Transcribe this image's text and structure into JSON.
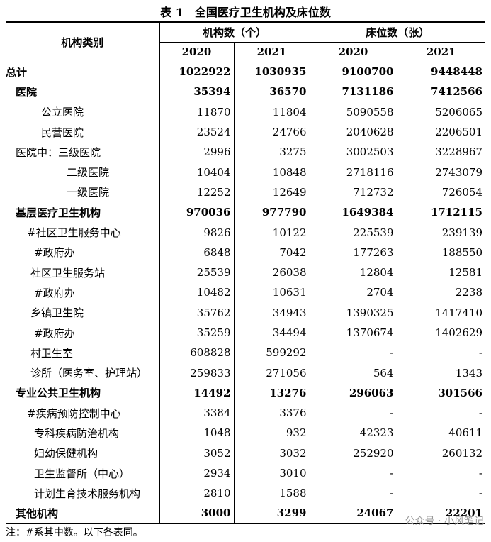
{
  "title": "表 1　全国医疗卫生机构及床位数",
  "table": {
    "header": {
      "category": "机构类别",
      "group1": "机构数（个）",
      "group2": "床位数（张）",
      "years": [
        "2020",
        "2021",
        "2020",
        "2021"
      ]
    },
    "rows": [
      [
        "总计",
        1022922,
        1030935,
        9100700,
        9448448
      ],
      [
        "医院",
        35394,
        36570,
        7131186,
        7412566
      ],
      [
        "公立医院",
        11870,
        11804,
        5090558,
        5206065
      ],
      [
        "民营医院",
        23524,
        24766,
        2040628,
        2206501
      ],
      [
        "医院中：三级医院",
        2996,
        3275,
        3002503,
        3228967
      ],
      [
        "二级医院",
        10404,
        10848,
        2718116,
        2743079
      ],
      [
        "一级医院",
        12252,
        12649,
        712732,
        726054
      ],
      [
        "基层医疗卫生机构",
        970036,
        977790,
        1649384,
        1712115
      ],
      [
        "#社区卫生服务中心",
        9826,
        10122,
        225539,
        239139
      ],
      [
        "#政府办",
        6848,
        7042,
        177263,
        188550
      ],
      [
        "社区卫生服务站",
        25539,
        26038,
        12804,
        12581
      ],
      [
        "#政府办",
        10482,
        10631,
        2704,
        2238
      ],
      [
        "乡镇卫生院",
        35762,
        34943,
        1390325,
        1417410
      ],
      [
        "#政府办",
        35259,
        34494,
        1370674,
        1402629
      ],
      [
        "村卫生室",
        608828,
        599292,
        "-",
        "-"
      ],
      [
        "诊所（医务室、护理站）",
        259833,
        271056,
        564,
        1343
      ],
      [
        "专业公共卫生机构",
        14492,
        13276,
        296063,
        301566
      ],
      [
        "#疾病预防控制中心",
        3384,
        3376,
        "-",
        "-"
      ],
      [
        "专科疾病防治机构",
        1048,
        932,
        42323,
        40611
      ],
      [
        "妇幼保健机构",
        3052,
        3032,
        252920,
        260132
      ],
      [
        "卫生监督所（中心）",
        2934,
        3010,
        "-",
        "-"
      ],
      [
        "计划生育技术服务机构",
        2810,
        1588,
        "-",
        "-"
      ],
      [
        "其他机构",
        3000,
        3299,
        24067,
        22201
      ]
    ]
  },
  "footnote": "注：#系其中数。以下各表同。",
  "watermark": "公众号 · 小风笔记"
}
